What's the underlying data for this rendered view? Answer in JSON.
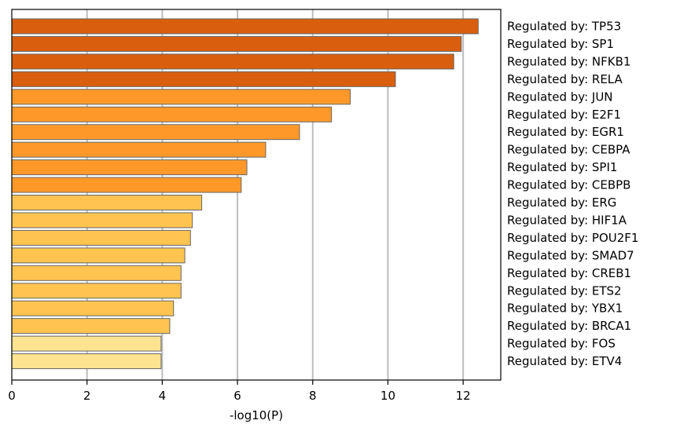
{
  "chart_data": {
    "type": "bar",
    "orientation": "horizontal",
    "xlabel": "-log10(P)",
    "ylabel": "",
    "xlim": [
      0,
      13
    ],
    "xticks": [
      0,
      2,
      4,
      6,
      8,
      10,
      12
    ],
    "grid": "vertical gridlines at major ticks",
    "category_labels_position": "right",
    "categories": [
      "Regulated by: TP53",
      "Regulated by: SP1",
      "Regulated by: NFKB1",
      "Regulated by: RELA",
      "Regulated by: JUN",
      "Regulated by: E2F1",
      "Regulated by: EGR1",
      "Regulated by: CEBPA",
      "Regulated by: SPI1",
      "Regulated by: CEBPB",
      "Regulated by: ERG",
      "Regulated by: HIF1A",
      "Regulated by: POU2F1",
      "Regulated by: SMAD7",
      "Regulated by: CREB1",
      "Regulated by: ETS2",
      "Regulated by: YBX1",
      "Regulated by: BRCA1",
      "Regulated by: FOS",
      "Regulated by: ETV4"
    ],
    "values": [
      12.4,
      11.95,
      11.75,
      10.2,
      9.0,
      8.5,
      7.65,
      6.75,
      6.25,
      6.1,
      5.05,
      4.8,
      4.75,
      4.6,
      4.5,
      4.5,
      4.3,
      4.2,
      3.97,
      3.97
    ],
    "bar_colors": [
      "#d95f0e",
      "#d95f0e",
      "#d95f0e",
      "#d95f0e",
      "#fe9929",
      "#fe9929",
      "#fe9929",
      "#fe9929",
      "#fe9929",
      "#fe9929",
      "#fec44f",
      "#fec44f",
      "#fec44f",
      "#fec44f",
      "#fec44f",
      "#fec44f",
      "#fec44f",
      "#fec44f",
      "#fee391",
      "#fee391"
    ],
    "bar_edge_color": "#666666"
  }
}
